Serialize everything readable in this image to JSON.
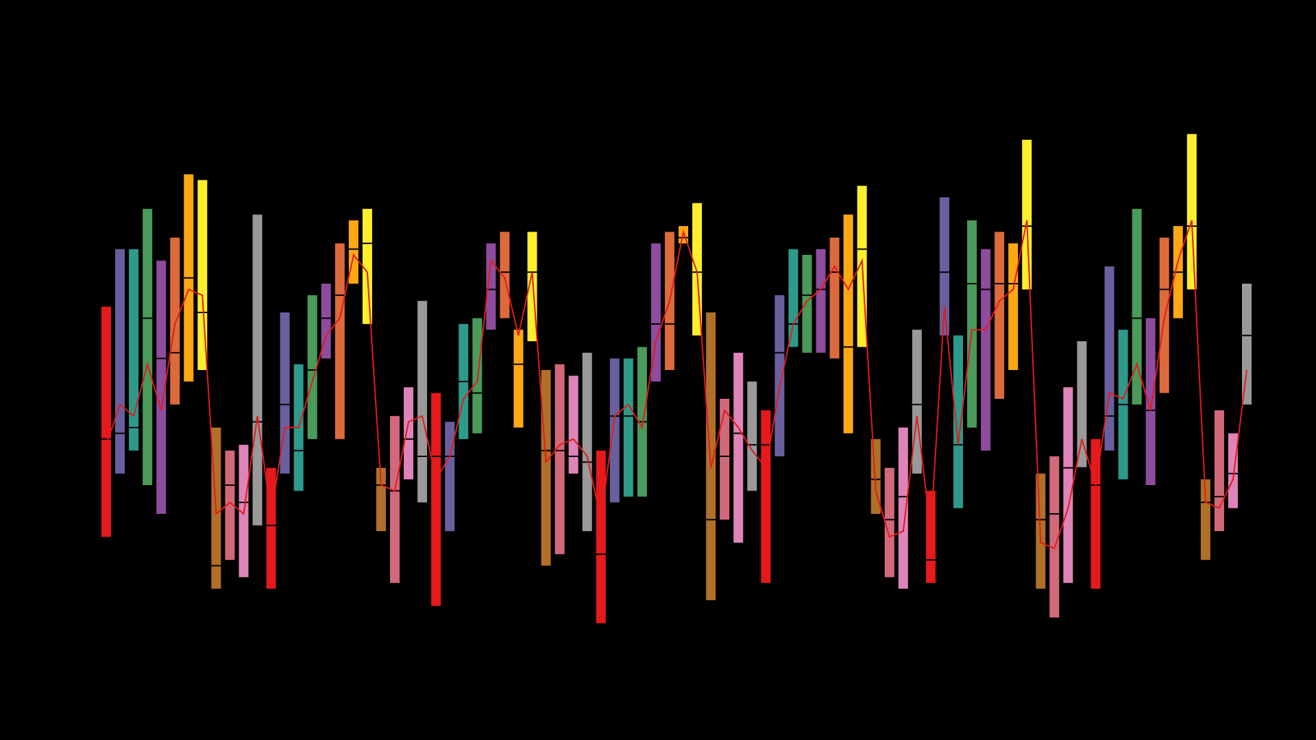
{
  "chart_data": {
    "type": "box",
    "title": "",
    "xlabel": "",
    "ylabel": "",
    "background": "#000000",
    "grid": false,
    "legend": false,
    "axes_visible": false,
    "ylim": [
      0,
      100
    ],
    "palette": [
      "#e41a1c",
      "#6a5f9e",
      "#2e9a8a",
      "#4a9a5a",
      "#8e4c9e",
      "#dd6a3a",
      "#ffa814",
      "#ffee2e",
      "#b0702a",
      "#d06a7a",
      "#de84b8",
      "#999999"
    ],
    "mean_line_color": "#e41a1c",
    "boxes": [
      {
        "x": 1,
        "q1": 21,
        "median": 38,
        "q3": 61,
        "mean": 37,
        "color": "#e41a1c"
      },
      {
        "x": 2,
        "q1": 32,
        "median": 39,
        "q3": 71,
        "mean": 44,
        "color": "#6a5f9e"
      },
      {
        "x": 3,
        "q1": 36,
        "median": 40,
        "q3": 71,
        "mean": 42,
        "color": "#2e9a8a"
      },
      {
        "x": 4,
        "q1": 30,
        "median": 59,
        "q3": 78,
        "mean": 51,
        "color": "#4a9a5a"
      },
      {
        "x": 5,
        "q1": 25,
        "median": 52,
        "q3": 69,
        "mean": 43,
        "color": "#8e4c9e"
      },
      {
        "x": 6,
        "q1": 44,
        "median": 53,
        "q3": 73,
        "mean": 58,
        "color": "#dd6a3a"
      },
      {
        "x": 7,
        "q1": 48,
        "median": 66,
        "q3": 84,
        "mean": 64,
        "color": "#ffa814"
      },
      {
        "x": 8,
        "q1": 50,
        "median": 60,
        "q3": 83,
        "mean": 63,
        "color": "#ffee2e"
      },
      {
        "x": 9,
        "q1": 12,
        "median": 16,
        "q3": 40,
        "mean": 25,
        "color": "#b0702a"
      },
      {
        "x": 10,
        "q1": 17,
        "median": 30,
        "q3": 36,
        "mean": 27,
        "color": "#d06a7a"
      },
      {
        "x": 11,
        "q1": 14,
        "median": 27,
        "q3": 37,
        "mean": 25,
        "color": "#de84b8"
      },
      {
        "x": 12,
        "q1": 23,
        "median": 41,
        "q3": 77,
        "mean": 42,
        "color": "#999999"
      },
      {
        "x": 13,
        "q1": 12,
        "median": 23,
        "q3": 33,
        "mean": 25,
        "color": "#e41a1c"
      },
      {
        "x": 14,
        "q1": 32,
        "median": 44,
        "q3": 60,
        "mean": 40,
        "color": "#6a5f9e"
      },
      {
        "x": 15,
        "q1": 29,
        "median": 36,
        "q3": 51,
        "mean": 40,
        "color": "#2e9a8a"
      },
      {
        "x": 16,
        "q1": 38,
        "median": 50,
        "q3": 63,
        "mean": 48,
        "color": "#4a9a5a"
      },
      {
        "x": 17,
        "q1": 52,
        "median": 59,
        "q3": 65,
        "mean": 56,
        "color": "#8e4c9e"
      },
      {
        "x": 18,
        "q1": 38,
        "median": 63,
        "q3": 72,
        "mean": 59,
        "color": "#dd6a3a"
      },
      {
        "x": 19,
        "q1": 65,
        "median": 71,
        "q3": 76,
        "mean": 70,
        "color": "#ffa814"
      },
      {
        "x": 20,
        "q1": 58,
        "median": 72,
        "q3": 78,
        "mean": 67,
        "color": "#ffee2e"
      },
      {
        "x": 21,
        "q1": 22,
        "median": 30,
        "q3": 33,
        "mean": 30,
        "color": "#b0702a"
      },
      {
        "x": 22,
        "q1": 13,
        "median": 29,
        "q3": 42,
        "mean": 29,
        "color": "#d06a7a"
      },
      {
        "x": 23,
        "q1": 31,
        "median": 38,
        "q3": 47,
        "mean": 41,
        "color": "#de84b8"
      },
      {
        "x": 24,
        "q1": 27,
        "median": 35,
        "q3": 62,
        "mean": 42,
        "color": "#999999"
      },
      {
        "x": 25,
        "q1": 9,
        "median": 35,
        "q3": 46,
        "mean": 31,
        "color": "#e41a1c"
      },
      {
        "x": 26,
        "q1": 22,
        "median": 35,
        "q3": 41,
        "mean": 35,
        "color": "#6a5f9e"
      },
      {
        "x": 27,
        "q1": 38,
        "median": 48,
        "q3": 58,
        "mean": 45,
        "color": "#2e9a8a"
      },
      {
        "x": 28,
        "q1": 39,
        "median": 46,
        "q3": 59,
        "mean": 48,
        "color": "#4a9a5a"
      },
      {
        "x": 29,
        "q1": 57,
        "median": 64,
        "q3": 72,
        "mean": 69,
        "color": "#8e4c9e"
      },
      {
        "x": 30,
        "q1": 59,
        "median": 67,
        "q3": 74,
        "mean": 66,
        "color": "#dd6a3a"
      },
      {
        "x": 31,
        "q1": 40,
        "median": 51,
        "q3": 57,
        "mean": 56,
        "color": "#ffa814"
      },
      {
        "x": 32,
        "q1": 55,
        "median": 67,
        "q3": 74,
        "mean": 67,
        "color": "#ffee2e"
      },
      {
        "x": 33,
        "q1": 16,
        "median": 36,
        "q3": 50,
        "mean": 34,
        "color": "#b0702a"
      },
      {
        "x": 34,
        "q1": 18,
        "median": 36,
        "q3": 51,
        "mean": 37,
        "color": "#d06a7a"
      },
      {
        "x": 35,
        "q1": 32,
        "median": 35,
        "q3": 49,
        "mean": 38,
        "color": "#de84b8"
      },
      {
        "x": 36,
        "q1": 22,
        "median": 34,
        "q3": 53,
        "mean": 35,
        "color": "#999999"
      },
      {
        "x": 37,
        "q1": 6,
        "median": 18,
        "q3": 36,
        "mean": 24,
        "color": "#e41a1c"
      },
      {
        "x": 38,
        "q1": 27,
        "median": 42,
        "q3": 52,
        "mean": 42,
        "color": "#6a5f9e"
      },
      {
        "x": 39,
        "q1": 28,
        "median": 42,
        "q3": 52,
        "mean": 44,
        "color": "#2e9a8a"
      },
      {
        "x": 40,
        "q1": 28,
        "median": 41,
        "q3": 54,
        "mean": 40,
        "color": "#4a9a5a"
      },
      {
        "x": 41,
        "q1": 48,
        "median": 58,
        "q3": 72,
        "mean": 55,
        "color": "#8e4c9e"
      },
      {
        "x": 42,
        "q1": 50,
        "median": 58,
        "q3": 74,
        "mean": 62,
        "color": "#dd6a3a"
      },
      {
        "x": 43,
        "q1": 72,
        "median": 73,
        "q3": 75,
        "mean": 74,
        "color": "#ffa814"
      },
      {
        "x": 44,
        "q1": 56,
        "median": 67,
        "q3": 79,
        "mean": 67,
        "color": "#ffee2e"
      },
      {
        "x": 45,
        "q1": 10,
        "median": 24,
        "q3": 60,
        "mean": 33,
        "color": "#b0702a"
      },
      {
        "x": 46,
        "q1": 24,
        "median": 35,
        "q3": 45,
        "mean": 43,
        "color": "#d06a7a"
      },
      {
        "x": 47,
        "q1": 20,
        "median": 39,
        "q3": 53,
        "mean": 40,
        "color": "#de84b8"
      },
      {
        "x": 48,
        "q1": 29,
        "median": 37,
        "q3": 48,
        "mean": 36,
        "color": "#999999"
      },
      {
        "x": 49,
        "q1": 13,
        "median": 37,
        "q3": 43,
        "mean": 33,
        "color": "#e41a1c"
      },
      {
        "x": 50,
        "q1": 35,
        "median": 53,
        "q3": 63,
        "mean": 47,
        "color": "#6a5f9e"
      },
      {
        "x": 51,
        "q1": 54,
        "median": 58,
        "q3": 71,
        "mean": 58,
        "color": "#2e9a8a"
      },
      {
        "x": 52,
        "q1": 53,
        "median": 63,
        "q3": 70,
        "mean": 62,
        "color": "#4a9a5a"
      },
      {
        "x": 53,
        "q1": 53,
        "median": 64,
        "q3": 71,
        "mean": 64,
        "color": "#8e4c9e"
      },
      {
        "x": 54,
        "q1": 52,
        "median": 67,
        "q3": 73,
        "mean": 68,
        "color": "#dd6a3a"
      },
      {
        "x": 55,
        "q1": 39,
        "median": 54,
        "q3": 77,
        "mean": 64,
        "color": "#ffa814"
      },
      {
        "x": 56,
        "q1": 54,
        "median": 71,
        "q3": 82,
        "mean": 69,
        "color": "#ffee2e"
      },
      {
        "x": 57,
        "q1": 25,
        "median": 31,
        "q3": 38,
        "mean": 29,
        "color": "#b0702a"
      },
      {
        "x": 58,
        "q1": 14,
        "median": 24,
        "q3": 33,
        "mean": 21,
        "color": "#d06a7a"
      },
      {
        "x": 59,
        "q1": 12,
        "median": 28,
        "q3": 40,
        "mean": 22,
        "color": "#de84b8"
      },
      {
        "x": 60,
        "q1": 32,
        "median": 44,
        "q3": 57,
        "mean": 42,
        "color": "#999999"
      },
      {
        "x": 61,
        "q1": 13,
        "median": 17,
        "q3": 29,
        "mean": 22,
        "color": "#e41a1c"
      },
      {
        "x": 62,
        "q1": 56,
        "median": 67,
        "q3": 80,
        "mean": 61,
        "color": "#6a5f9e"
      },
      {
        "x": 63,
        "q1": 26,
        "median": 37,
        "q3": 56,
        "mean": 37,
        "color": "#2e9a8a"
      },
      {
        "x": 64,
        "q1": 40,
        "median": 65,
        "q3": 76,
        "mean": 57,
        "color": "#4a9a5a"
      },
      {
        "x": 65,
        "q1": 36,
        "median": 64,
        "q3": 71,
        "mean": 57,
        "color": "#8e4c9e"
      },
      {
        "x": 66,
        "q1": 45,
        "median": 65,
        "q3": 74,
        "mean": 62,
        "color": "#dd6a3a"
      },
      {
        "x": 67,
        "q1": 50,
        "median": 65,
        "q3": 72,
        "mean": 64,
        "color": "#ffa814"
      },
      {
        "x": 68,
        "q1": 64,
        "median": 75,
        "q3": 90,
        "mean": 76,
        "color": "#ffee2e"
      },
      {
        "x": 69,
        "q1": 12,
        "median": 24,
        "q3": 32,
        "mean": 20,
        "color": "#b0702a"
      },
      {
        "x": 70,
        "q1": 7,
        "median": 25,
        "q3": 35,
        "mean": 19,
        "color": "#d06a7a"
      },
      {
        "x": 71,
        "q1": 13,
        "median": 33,
        "q3": 47,
        "mean": 26,
        "color": "#de84b8"
      },
      {
        "x": 72,
        "q1": 33,
        "median": 33,
        "q3": 55,
        "mean": 38,
        "color": "#999999"
      },
      {
        "x": 73,
        "q1": 12,
        "median": 30,
        "q3": 38,
        "mean": 30,
        "color": "#e41a1c"
      },
      {
        "x": 74,
        "q1": 36,
        "median": 42,
        "q3": 68,
        "mean": 46,
        "color": "#6a5f9e"
      },
      {
        "x": 75,
        "q1": 31,
        "median": 44,
        "q3": 57,
        "mean": 45,
        "color": "#2e9a8a"
      },
      {
        "x": 76,
        "q1": 44,
        "median": 59,
        "q3": 78,
        "mean": 51,
        "color": "#4a9a5a"
      },
      {
        "x": 77,
        "q1": 30,
        "median": 43,
        "q3": 59,
        "mean": 43,
        "color": "#8e4c9e"
      },
      {
        "x": 78,
        "q1": 46,
        "median": 64,
        "q3": 73,
        "mean": 59,
        "color": "#dd6a3a"
      },
      {
        "x": 79,
        "q1": 59,
        "median": 67,
        "q3": 75,
        "mean": 69,
        "color": "#ffa814"
      },
      {
        "x": 80,
        "q1": 64,
        "median": 75,
        "q3": 91,
        "mean": 76,
        "color": "#ffee2e"
      },
      {
        "x": 81,
        "q1": 17,
        "median": 27,
        "q3": 31,
        "mean": 27,
        "color": "#b0702a"
      },
      {
        "x": 82,
        "q1": 22,
        "median": 28,
        "q3": 43,
        "mean": 26,
        "color": "#d06a7a"
      },
      {
        "x": 83,
        "q1": 26,
        "median": 32,
        "q3": 39,
        "mean": 31,
        "color": "#de84b8"
      },
      {
        "x": 84,
        "q1": 44,
        "median": 56,
        "q3": 65,
        "mean": 50,
        "color": "#999999"
      }
    ]
  }
}
